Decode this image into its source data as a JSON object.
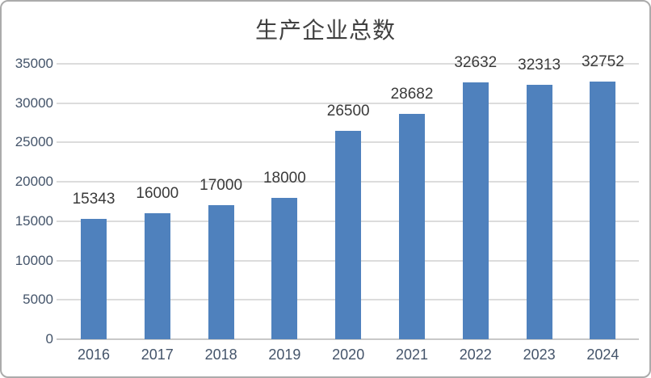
{
  "chart": {
    "title": "生产企业总数"
  },
  "chart_data": {
    "type": "bar",
    "title": "生产企业总数",
    "categories": [
      "2016",
      "2017",
      "2018",
      "2019",
      "2020",
      "2021",
      "2022",
      "2023",
      "2024"
    ],
    "values": [
      15343,
      16000,
      17000,
      18000,
      26500,
      28682,
      32632,
      32313,
      32752
    ],
    "data_labels": [
      "15343",
      "16000",
      "17000",
      "18000",
      "26500",
      "28682",
      "32632",
      "32313",
      "32752"
    ],
    "xlabel": "",
    "ylabel": "",
    "ylim": [
      0,
      35000
    ],
    "yticks": [
      0,
      5000,
      10000,
      15000,
      20000,
      25000,
      30000,
      35000
    ],
    "grid": true,
    "legend": "none",
    "show_data_labels": true
  },
  "colors": {
    "bar_fill": "#4F81BD",
    "gridline": "#DCDCDC",
    "axis_line": "#C8C8C8",
    "tick_label": "#44546A",
    "data_label": "#3A3A3A",
    "title_text": "#404040",
    "border": "#ABABAB",
    "background": "#FFFFFF"
  }
}
